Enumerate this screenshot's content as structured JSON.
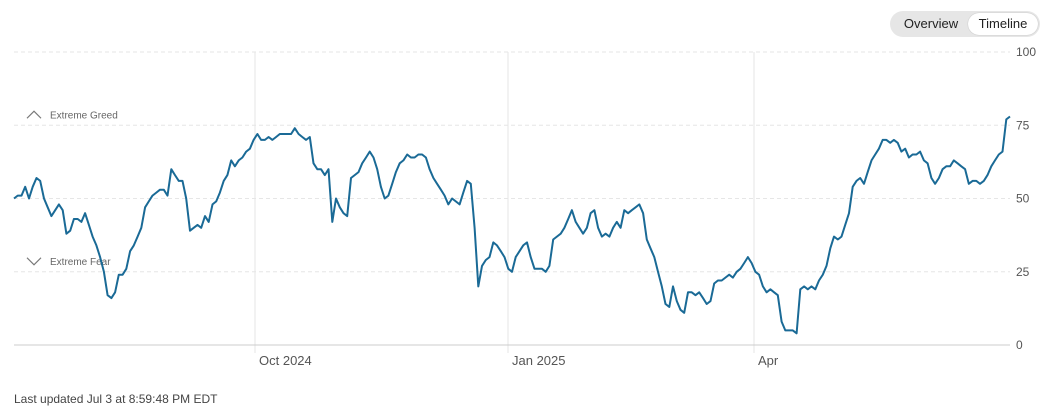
{
  "toggle": {
    "overview_label": "Overview",
    "timeline_label": "Timeline",
    "selected": "Timeline"
  },
  "footer": {
    "last_updated": "Last updated Jul 3 at 8:59:48 PM EDT"
  },
  "colors": {
    "line": "#1a6a96",
    "grid": "#e6e6e6",
    "threshold": "#dddddd",
    "axis": "#cccccc",
    "text": "#555555"
  },
  "chart_data": {
    "type": "line",
    "title": "",
    "xlabel": "",
    "ylabel": "",
    "ylim": [
      0,
      100
    ],
    "yticks": [
      0,
      25,
      50,
      75,
      100
    ],
    "xticks": [
      "Oct 2024",
      "Jan 2025",
      "Apr"
    ],
    "grid": true,
    "thresholds": [
      {
        "label": "Extreme Greed",
        "value": 75,
        "icon": "chevron-up-icon"
      },
      {
        "label": "Extreme Fear",
        "value": 25,
        "icon": "chevron-down-icon"
      }
    ],
    "series": [
      {
        "values": [
          50,
          51,
          51,
          54,
          50,
          54,
          57,
          56,
          50,
          47,
          44,
          46,
          48,
          46,
          38,
          39,
          43,
          43,
          42,
          45,
          41,
          37,
          34,
          30,
          25,
          17,
          16,
          18,
          24,
          24,
          26,
          32,
          34,
          37,
          40,
          47,
          49,
          51,
          52,
          53,
          53,
          51,
          60,
          58,
          56,
          56,
          50,
          39,
          40,
          41,
          40,
          44,
          42,
          48,
          49,
          52,
          56,
          58,
          63,
          61,
          63,
          64,
          66,
          67,
          70,
          72,
          70,
          70,
          71,
          70,
          71,
          72,
          72,
          72,
          72,
          74,
          72,
          71,
          70,
          71,
          62,
          60,
          60,
          58,
          60,
          42,
          50,
          47,
          45,
          44,
          57,
          58,
          59,
          62,
          64,
          66,
          64,
          60,
          54,
          50,
          51,
          55,
          59,
          62,
          63,
          65,
          64,
          64,
          65,
          65,
          64,
          60,
          57,
          55,
          53,
          51,
          48,
          50,
          49,
          48,
          52,
          56,
          55,
          40,
          20,
          27,
          29,
          30,
          35,
          34,
          32,
          30,
          26,
          25,
          30,
          32,
          34,
          35,
          30,
          26,
          26,
          26,
          25,
          27,
          36,
          37,
          38,
          40,
          43,
          46,
          42,
          40,
          38,
          40,
          45,
          46,
          40,
          37,
          38,
          37,
          40,
          42,
          40,
          46,
          45,
          46,
          47,
          48,
          45,
          36,
          33,
          30,
          25,
          20,
          14,
          13,
          20,
          15,
          12,
          11,
          18,
          18,
          17,
          18,
          16,
          14,
          15,
          21,
          22,
          22,
          23,
          24,
          23,
          25,
          26,
          28,
          30,
          28,
          25,
          24,
          20,
          18,
          19,
          18,
          17,
          8,
          5,
          5,
          5,
          4,
          19,
          20,
          19,
          20,
          19,
          22,
          24,
          27,
          33,
          37,
          36,
          37,
          41,
          45,
          54,
          56,
          57,
          55,
          59,
          63,
          65,
          67,
          70,
          70,
          69,
          70,
          69,
          66,
          67,
          64,
          65,
          65,
          66,
          63,
          62,
          57,
          55,
          57,
          60,
          61,
          61,
          63,
          62,
          61,
          60,
          55,
          56,
          56,
          55,
          56,
          58,
          61,
          63,
          65,
          66,
          77,
          78
        ]
      }
    ]
  }
}
